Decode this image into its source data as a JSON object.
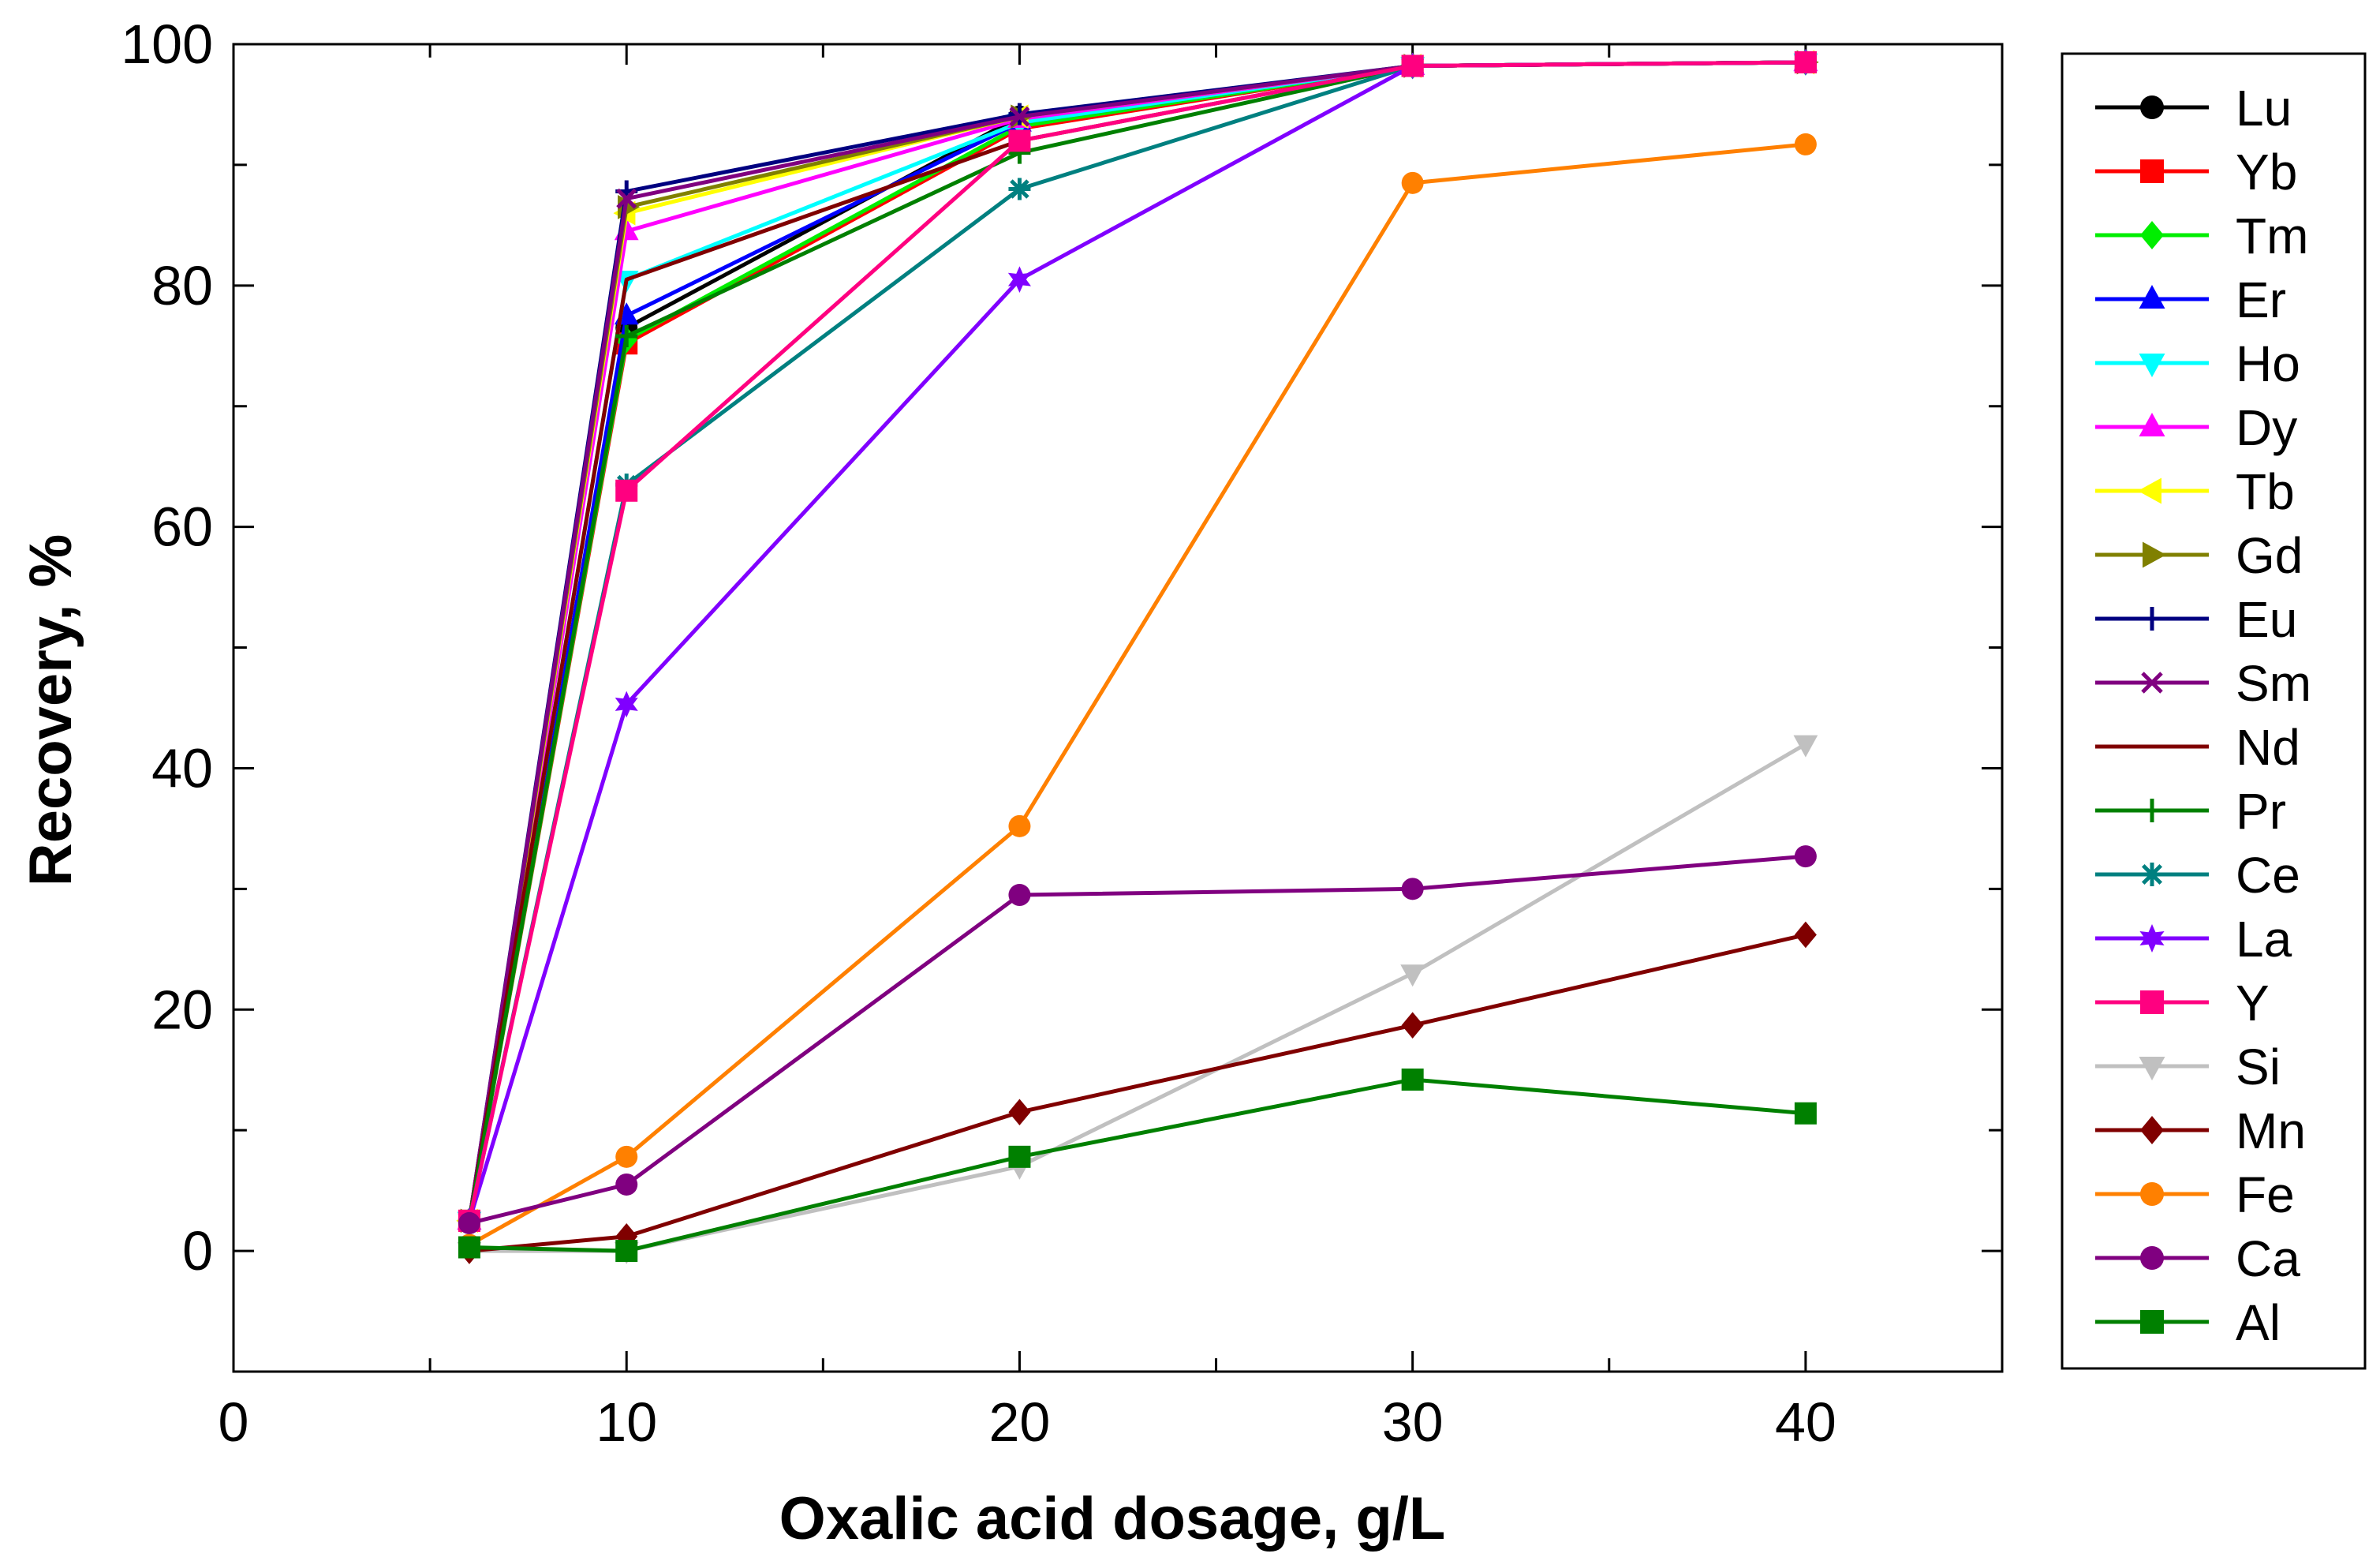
{
  "chart_data": {
    "type": "line",
    "xlabel": "Oxalic acid dosage, g/L",
    "ylabel": "Recovery, %",
    "xlim": [
      0,
      45
    ],
    "ylim": [
      -10,
      100
    ],
    "xticks": [
      0,
      10,
      20,
      30,
      40
    ],
    "yticks": [
      0,
      20,
      40,
      60,
      80,
      100
    ],
    "grid": false,
    "legend_position": "right",
    "x": [
      6,
      10,
      20,
      30,
      40
    ],
    "series": [
      {
        "name": "Lu",
        "color": "#000000",
        "marker": "circle",
        "values": [
          2.5,
          76.5,
          94.0,
          98.2,
          98.5
        ]
      },
      {
        "name": "Yb",
        "color": "#ff0000",
        "marker": "square",
        "values": [
          2.5,
          75.2,
          93.0,
          98.2,
          98.5
        ]
      },
      {
        "name": "Tm",
        "color": "#00ee00",
        "marker": "diamond",
        "values": [
          2.5,
          75.5,
          93.2,
          98.2,
          98.5
        ]
      },
      {
        "name": "Er",
        "color": "#0000ff",
        "marker": "triangle-up",
        "values": [
          2.5,
          77.5,
          93.5,
          98.2,
          98.5
        ]
      },
      {
        "name": "Ho",
        "color": "#00ffff",
        "marker": "triangle-down",
        "values": [
          2.5,
          80.5,
          93.5,
          98.2,
          98.5
        ]
      },
      {
        "name": "Dy",
        "color": "#ff00ff",
        "marker": "triangle-up",
        "values": [
          2.5,
          84.5,
          93.8,
          98.2,
          98.5
        ]
      },
      {
        "name": "Tb",
        "color": "#ffff00",
        "marker": "triangle-left",
        "values": [
          2.5,
          86.0,
          94.0,
          98.2,
          98.5
        ]
      },
      {
        "name": "Gd",
        "color": "#808000",
        "marker": "triangle-right",
        "values": [
          2.5,
          86.5,
          94.0,
          98.2,
          98.5
        ]
      },
      {
        "name": "Eu",
        "color": "#000080",
        "marker": "plus",
        "values": [
          2.5,
          87.8,
          94.2,
          98.2,
          98.5
        ]
      },
      {
        "name": "Sm",
        "color": "#800080",
        "marker": "cross",
        "values": [
          2.5,
          87.2,
          94.0,
          98.2,
          98.5
        ]
      },
      {
        "name": "Nd",
        "color": "#800000",
        "marker": "none",
        "values": [
          2.5,
          80.5,
          92.0,
          98.2,
          98.5
        ]
      },
      {
        "name": "Pr",
        "color": "#008000",
        "marker": "plus",
        "values": [
          2.5,
          75.8,
          91.0,
          98.2,
          98.5
        ]
      },
      {
        "name": "Ce",
        "color": "#008080",
        "marker": "asterisk",
        "values": [
          2.5,
          63.5,
          88.0,
          98.2,
          98.5
        ]
      },
      {
        "name": "La",
        "color": "#8000ff",
        "marker": "star",
        "values": [
          2.5,
          45.3,
          80.5,
          98.2,
          98.5
        ]
      },
      {
        "name": "Y",
        "color": "#ff0080",
        "marker": "square",
        "values": [
          2.5,
          63.0,
          92.0,
          98.2,
          98.5
        ]
      },
      {
        "name": "Si",
        "color": "#c0c0c0",
        "marker": "triangle-down",
        "values": [
          0.0,
          0.0,
          7.0,
          23.0,
          42.0
        ]
      },
      {
        "name": "Mn",
        "color": "#800000",
        "marker": "diamond",
        "values": [
          0.0,
          1.2,
          11.5,
          18.7,
          26.2
        ]
      },
      {
        "name": "Fe",
        "color": "#ff8000",
        "marker": "circle",
        "values": [
          0.5,
          7.8,
          35.2,
          88.5,
          91.7
        ]
      },
      {
        "name": "Ca",
        "color": "#800080",
        "marker": "circle",
        "values": [
          2.3,
          5.5,
          29.5,
          30.0,
          32.7
        ]
      },
      {
        "name": "Al",
        "color": "#008000",
        "marker": "square",
        "values": [
          0.3,
          0.0,
          7.8,
          14.2,
          11.4
        ]
      }
    ]
  }
}
